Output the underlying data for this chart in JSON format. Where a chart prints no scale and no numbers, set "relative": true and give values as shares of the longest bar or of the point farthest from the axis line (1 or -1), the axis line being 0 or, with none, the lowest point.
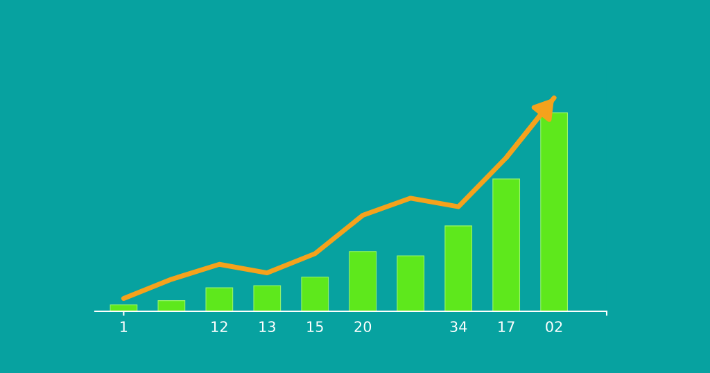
{
  "chart_data": {
    "type": "bar",
    "relative": true,
    "tick_labels": "x",
    "grid": false,
    "categories": [
      "1",
      null,
      "12",
      "13",
      "15",
      "20",
      null,
      "34",
      "17",
      "02"
    ],
    "series": [
      {
        "color": "#5ee81c",
        "values": [
          0.03,
          0.05,
          0.11,
          0.12,
          0.16,
          0.28,
          0.26,
          0.4,
          0.62,
          0.93
        ]
      },
      {
        "type": "line",
        "color": "#f5a21c",
        "marker": "none",
        "line_style": "solid",
        "values": [
          0.06,
          0.15,
          0.22,
          0.18,
          0.27,
          0.45,
          0.53,
          0.49,
          0.72,
          1.0
        ]
      }
    ]
  }
}
